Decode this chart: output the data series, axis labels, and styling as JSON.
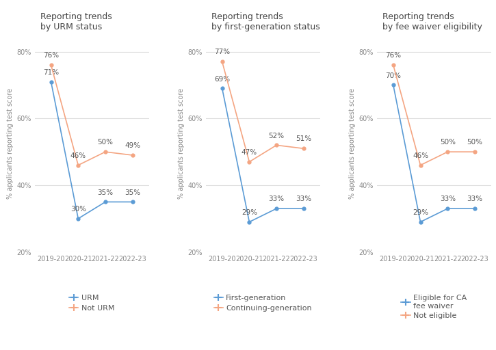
{
  "panels": [
    {
      "title": "Reporting trends\nby URM status",
      "x_labels": [
        "2019-20",
        "2020-21",
        "2021-22",
        "2022-23"
      ],
      "series": [
        {
          "label": "URM",
          "color": "#5b9bd5",
          "values": [
            71,
            30,
            35,
            35
          ],
          "marker": "o"
        },
        {
          "label": "Not URM",
          "color": "#f4a582",
          "values": [
            76,
            46,
            50,
            49
          ],
          "marker": "o"
        }
      ]
    },
    {
      "title": "Reporting trends\nby first-generation status",
      "x_labels": [
        "2019-20",
        "2020-21",
        "2021-22",
        "2022-23"
      ],
      "series": [
        {
          "label": "First-generation",
          "color": "#5b9bd5",
          "values": [
            69,
            29,
            33,
            33
          ],
          "marker": "o"
        },
        {
          "label": "Continuing-generation",
          "color": "#f4a582",
          "values": [
            77,
            47,
            52,
            51
          ],
          "marker": "o"
        }
      ]
    },
    {
      "title": "Reporting trends\nby fee waiver eligibility",
      "x_labels": [
        "2019-20",
        "2020-21",
        "2021-22",
        "2022-23"
      ],
      "series": [
        {
          "label": "Eligible for CA\nfee waiver",
          "color": "#5b9bd5",
          "values": [
            70,
            29,
            33,
            33
          ],
          "marker": "o"
        },
        {
          "label": "Not eligible",
          "color": "#f4a582",
          "values": [
            76,
            46,
            50,
            50
          ],
          "marker": "o"
        }
      ]
    }
  ],
  "ylabel": "% applicants reporting test score",
  "ylim": [
    20,
    85
  ],
  "yticks": [
    20,
    40,
    60,
    80
  ],
  "ytick_labels": [
    "20%",
    "40%",
    "60%",
    "80%"
  ],
  "background_color": "#ffffff",
  "grid_color": "#dddddd",
  "text_color": "#888888",
  "data_label_color": "#555555",
  "label_fontsize": 7.5,
  "title_fontsize": 9,
  "ylabel_fontsize": 7,
  "tick_fontsize": 7,
  "legend_fontsize": 8
}
